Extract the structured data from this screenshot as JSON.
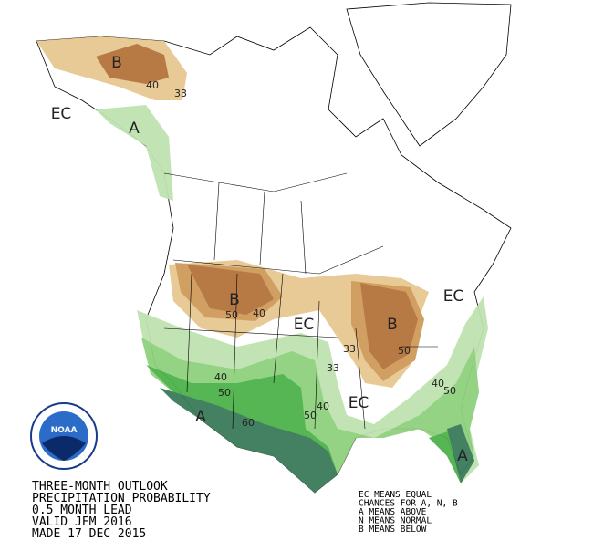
{
  "title_lines": [
    "THREE-MONTH OUTLOOK",
    "PRECIPITATION PROBABILITY",
    "0.5 MONTH LEAD",
    "VALID JFM 2016",
    "MADE 17 DEC 2015"
  ],
  "legend_lines": [
    "EC MEANS EQUAL",
    "CHANCES FOR A, N, B",
    "A MEANS ABOVE",
    "N MEANS NORMAL",
    "B MEANS BELOW"
  ],
  "logo_text": "NOAA",
  "map_labels": [
    "B",
    "40",
    "33",
    "EC",
    "A",
    "B",
    "50",
    "40",
    "EC",
    "B",
    "33",
    "50",
    "EC",
    "40",
    "50",
    "33",
    "40",
    "50",
    "EC",
    "A",
    "60",
    "40",
    "50",
    "A"
  ]
}
